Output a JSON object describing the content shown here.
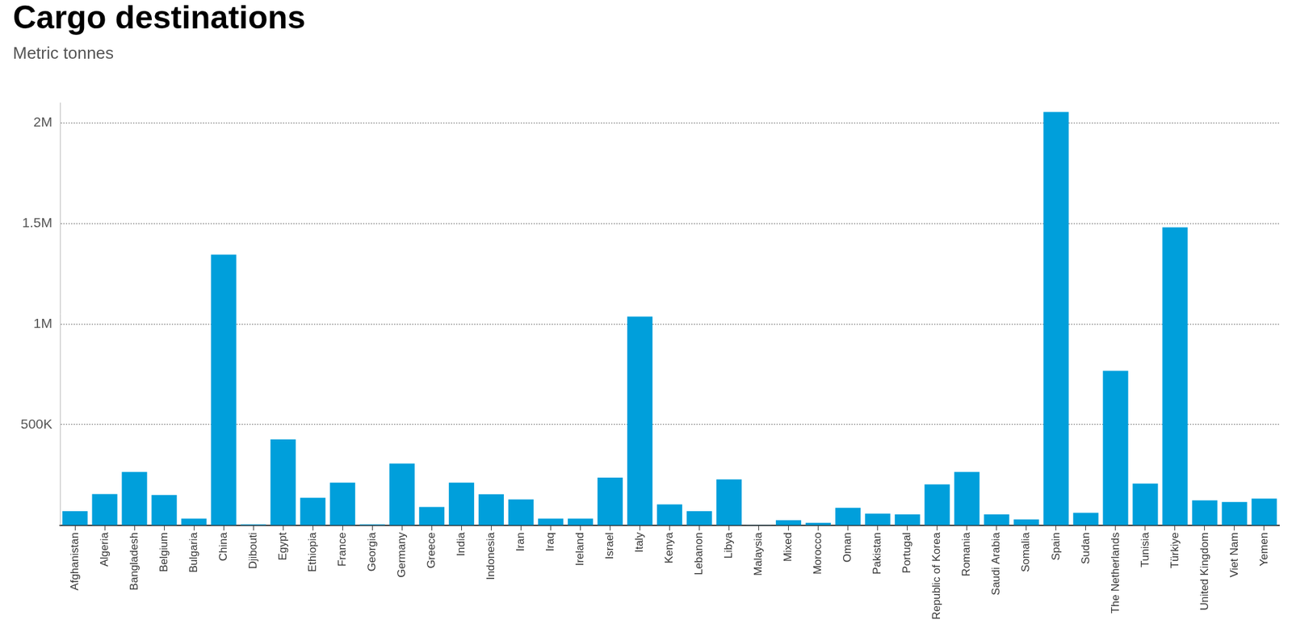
{
  "chart_data": {
    "type": "bar",
    "title": "Cargo destinations",
    "subtitle": "Metric tonnes",
    "categories": [
      "Afghanistan",
      "Algeria",
      "Bangladesh",
      "Belgium",
      "Bulgaria",
      "China",
      "Djibouti",
      "Egypt",
      "Ethiopia",
      "France",
      "Georgia",
      "Germany",
      "Greece",
      "India",
      "Indonesia",
      "Iran",
      "Iraq",
      "Ireland",
      "Israel",
      "Italy",
      "Kenya",
      "Lebanon",
      "Libya",
      "Malaysia",
      "Mixed",
      "Morocco",
      "Oman",
      "Pakistan",
      "Portugal",
      "Republic of Korea",
      "Romania",
      "Saudi Arabia",
      "Somalia",
      "Spain",
      "Sudan",
      "The Netherlands",
      "Tunisia",
      "Türkiye",
      "United Kingdom",
      "Viet Nam",
      "Yemen"
    ],
    "values": [
      70000,
      155000,
      265000,
      150000,
      33000,
      1345000,
      4000,
      427000,
      137000,
      212000,
      4000,
      307000,
      91000,
      212000,
      154000,
      129000,
      33000,
      33000,
      237000,
      1037000,
      104000,
      70000,
      228000,
      1000,
      25000,
      12000,
      87000,
      58000,
      54000,
      203000,
      265000,
      54000,
      29000,
      2054000,
      62000,
      768000,
      207000,
      1481000,
      124000,
      116000,
      133000
    ],
    "color": "#009fdb",
    "ylim": [
      0,
      2100000
    ],
    "yticks": [
      {
        "value": 500000,
        "label": "500K"
      },
      {
        "value": 1000000,
        "label": "1M"
      },
      {
        "value": 1500000,
        "label": "1.5M"
      },
      {
        "value": 2000000,
        "label": "2M"
      }
    ],
    "grid": true
  }
}
